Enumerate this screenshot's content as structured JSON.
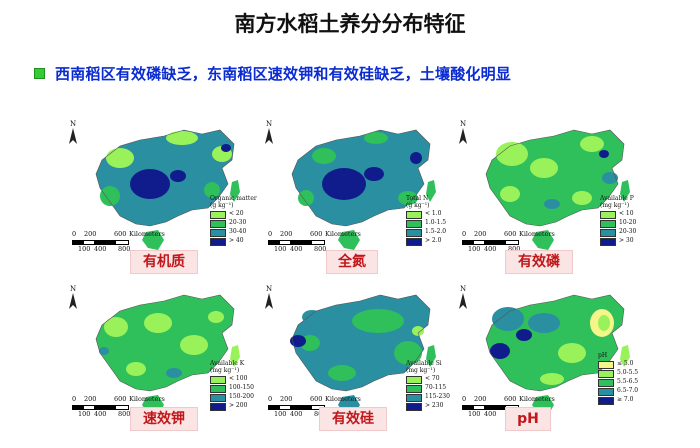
{
  "title": "南方水稻土养分分布特征",
  "subtitle": "西南稻区有效磷缺乏，东南稻区速效钾和有效硅缺乏，土壤酸化明显",
  "scale": {
    "ticks_top": [
      "0",
      "200",
      "600"
    ],
    "ticks_bottom": [
      "100",
      "400",
      "800"
    ],
    "unit": "Kilometers"
  },
  "north": "N",
  "panels": [
    {
      "label": "有机质",
      "legend_title": [
        "Organic matter",
        "(g kg⁻¹)"
      ],
      "legend": [
        {
          "label": "< 20",
          "color": "#9af25a"
        },
        {
          "label": "20-30",
          "color": "#2fbf5b"
        },
        {
          "label": "30-40",
          "color": "#2a8fa0"
        },
        {
          "label": "> 40",
          "color": "#101b8c"
        }
      ]
    },
    {
      "label": "全氮",
      "legend_title": [
        "Total N",
        "(g kg⁻¹)"
      ],
      "legend": [
        {
          "label": "< 1.0",
          "color": "#9af25a"
        },
        {
          "label": "1.0-1.5",
          "color": "#2fbf5b"
        },
        {
          "label": "1.5-2.0",
          "color": "#2a8fa0"
        },
        {
          "label": "> 2.0",
          "color": "#101b8c"
        }
      ]
    },
    {
      "label": "有效磷",
      "legend_title": [
        "Available P",
        "(mg kg⁻¹)"
      ],
      "legend": [
        {
          "label": "< 10",
          "color": "#9af25a"
        },
        {
          "label": "10-20",
          "color": "#2fbf5b"
        },
        {
          "label": "20-30",
          "color": "#2a8fa0"
        },
        {
          "label": "> 30",
          "color": "#101b8c"
        }
      ]
    },
    {
      "label": "速效钾",
      "legend_title": [
        "Available K",
        "(mg kg⁻¹)"
      ],
      "legend": [
        {
          "label": "< 100",
          "color": "#9af25a"
        },
        {
          "label": "100-150",
          "color": "#2fbf5b"
        },
        {
          "label": "150-200",
          "color": "#2a8fa0"
        },
        {
          "label": "> 200",
          "color": "#101b8c"
        }
      ]
    },
    {
      "label": "有效硅",
      "legend_title": [
        "Available Si",
        "(mg kg⁻¹)"
      ],
      "legend": [
        {
          "label": "< 70",
          "color": "#9af25a"
        },
        {
          "label": "70-115",
          "color": "#2fbf5b"
        },
        {
          "label": "115-230",
          "color": "#2a8fa0"
        },
        {
          "label": "> 230",
          "color": "#101b8c"
        }
      ]
    },
    {
      "label": "pH",
      "legend_title": [
        "pH"
      ],
      "legend": [
        {
          "label": "≤ 5.0",
          "color": "#f5f58a"
        },
        {
          "label": "5.0-5.5",
          "color": "#9af25a"
        },
        {
          "label": "5.5-6.5",
          "color": "#2fbf5b"
        },
        {
          "label": "6.5-7.0",
          "color": "#2a8fa0"
        },
        {
          "label": "≥ 7.0",
          "color": "#101b8c"
        }
      ]
    }
  ]
}
